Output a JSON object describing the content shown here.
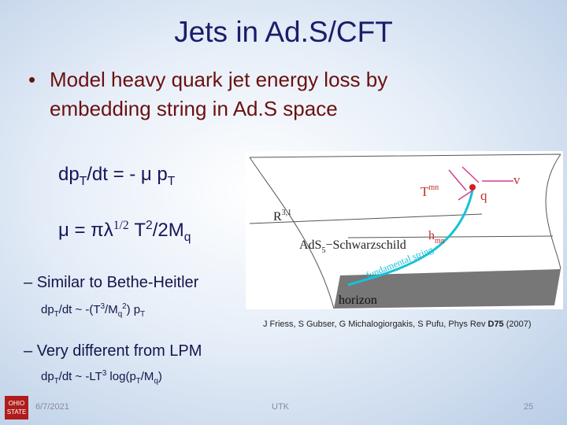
{
  "title": "Jets in Ad.S/CFT",
  "bullet": {
    "marker": "•",
    "lines": [
      "Model heavy quark jet energy loss by",
      "embedding string in Ad.S space"
    ]
  },
  "equations": [
    [
      "dp",
      "T",
      "/dt = - μ p",
      "T"
    ],
    [
      "μ = πλ",
      "1/2",
      " T",
      "2",
      "/2M",
      "q"
    ]
  ],
  "sub_bullets": [
    {
      "marker": "–",
      "text": "Similar to Bethe-Heitler",
      "formula": [
        "dp",
        "T",
        "/dt ~ -(T",
        "3",
        "/M",
        "q",
        "2",
        ") p",
        "T"
      ]
    },
    {
      "marker": "–",
      "text": "Very different from LPM",
      "formula": [
        "dp",
        "T",
        "/dt ~ -LT",
        "3",
        " log(p",
        "T",
        "/M",
        "q",
        ")"
      ]
    }
  ],
  "figure": {
    "labels": {
      "T": "T",
      "T_index": "mn",
      "q": "q",
      "v": "v",
      "R": "R",
      "R_index": "3,1",
      "h": "h",
      "h_index": "mn",
      "AdS": "AdS",
      "AdS_index": "5",
      "schwarzschild": "−Schwarzschild",
      "string": "fundamental string",
      "horizon": "horizon"
    }
  },
  "citation": [
    "J Friess, S Gubser, G Michalogiorgakis, S Pufu, Phys Rev ",
    "D75",
    " (2007)"
  ],
  "footer": {
    "logo": [
      "OHIO",
      "STATE"
    ],
    "date": "6/7/2021",
    "center": "UTK",
    "page": "25"
  }
}
